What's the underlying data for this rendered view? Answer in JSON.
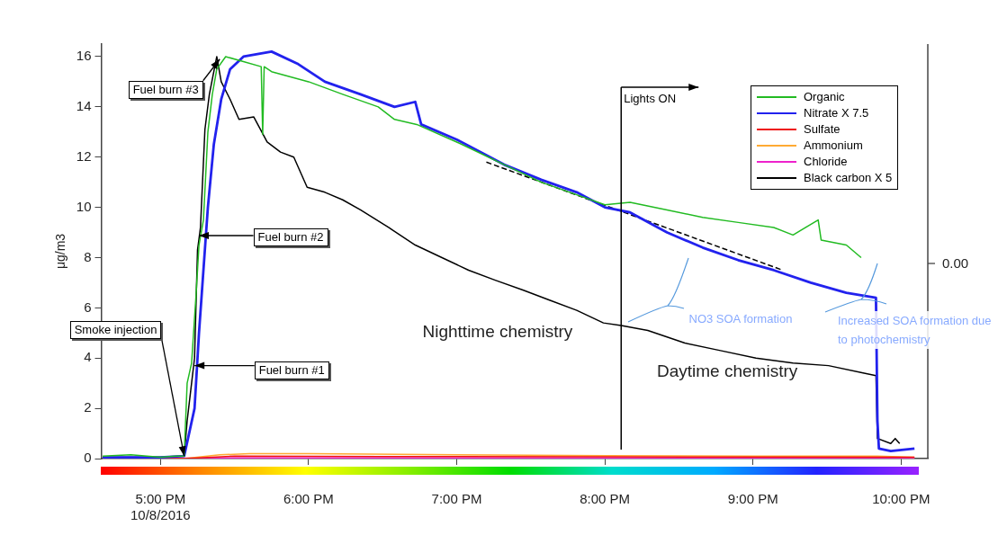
{
  "chart_data": {
    "type": "line",
    "ylabel": "μg/m3",
    "xlim": [
      16.6,
      22.18
    ],
    "ylim": [
      0,
      16.5
    ],
    "xticks": [
      {
        "value": 17,
        "label": "5:00 PM\n10/8/2016"
      },
      {
        "value": 18,
        "label": "6:00 PM"
      },
      {
        "value": 19,
        "label": "7:00 PM"
      },
      {
        "value": 20,
        "label": "8:00 PM"
      },
      {
        "value": 21,
        "label": "9:00 PM"
      },
      {
        "value": 22,
        "label": "10:00 PM"
      }
    ],
    "yticks": [
      0,
      2,
      4,
      6,
      8,
      10,
      12,
      14,
      16
    ],
    "grid": false,
    "legend": "top right",
    "marker": "none",
    "series": [
      {
        "name": "Organic",
        "color": "#22bb22",
        "x": [
          16.61,
          16.8,
          17.0,
          17.1,
          17.16,
          17.18,
          17.21,
          17.24,
          17.26,
          17.29,
          17.32,
          17.35,
          17.38,
          17.44,
          17.56,
          17.68,
          17.69,
          17.7,
          17.75,
          18.0,
          18.23,
          18.47,
          18.58,
          18.73,
          19.0,
          19.32,
          19.57,
          19.81,
          20.0,
          20.17,
          20.42,
          20.66,
          20.9,
          21.14,
          21.27,
          21.44,
          21.46,
          21.63,
          21.73
        ],
        "values": [
          0.1,
          0.15,
          0.05,
          0.1,
          0.1,
          3.0,
          3.8,
          6.5,
          8.5,
          9.5,
          13,
          14.5,
          15.5,
          16,
          15.8,
          15.6,
          12.9,
          15.6,
          15.4,
          15.0,
          14.5,
          14.0,
          13.5,
          13.3,
          12.6,
          11.7,
          11.0,
          10.5,
          10.1,
          10.2,
          9.9,
          9.6,
          9.4,
          9.2,
          8.9,
          9.5,
          8.7,
          8.5,
          8.0
        ]
      },
      {
        "name": "Nitrate X 7.5",
        "color": "#2222ee",
        "x": [
          16.61,
          17.0,
          17.16,
          17.23,
          17.26,
          17.29,
          17.32,
          17.36,
          17.41,
          17.47,
          17.56,
          17.75,
          17.93,
          18.11,
          18.35,
          18.58,
          18.72,
          18.76,
          19.0,
          19.32,
          19.57,
          19.81,
          20.0,
          20.17,
          20.42,
          20.66,
          20.9,
          21.14,
          21.39,
          21.63,
          21.83,
          21.84,
          21.85,
          21.93,
          22.09
        ],
        "values": [
          0.05,
          0.05,
          0.1,
          2.0,
          5,
          7.5,
          10,
          12.5,
          14.3,
          15.5,
          16,
          16.2,
          15.7,
          15.0,
          14.5,
          14.0,
          14.2,
          13.3,
          12.7,
          11.7,
          11.1,
          10.6,
          10.0,
          9.8,
          9.0,
          8.4,
          7.9,
          7.5,
          7.0,
          6.6,
          6.4,
          1.5,
          0.4,
          0.3,
          0.4
        ]
      },
      {
        "name": "Sulfate",
        "color": "#ee1111",
        "x": [
          16.61,
          17.16,
          17.5,
          18.5,
          20.0,
          22.09
        ],
        "values": [
          0,
          0,
          0.1,
          0.08,
          0.07,
          0.05
        ]
      },
      {
        "name": "Ammonium",
        "color": "#ffaa33",
        "x": [
          16.61,
          17.16,
          17.4,
          17.6,
          18.0,
          19.0,
          20.0,
          21.0,
          21.84,
          22.09
        ],
        "values": [
          0,
          0,
          0.15,
          0.2,
          0.2,
          0.15,
          0.12,
          0.1,
          0.1,
          0.05
        ]
      },
      {
        "name": "Chloride",
        "color": "#ee22cc",
        "x": [
          16.61,
          17.5,
          22.09
        ],
        "values": [
          0,
          0.03,
          0.02
        ]
      },
      {
        "name": "Black carbon X 5",
        "color": "#000000",
        "x": [
          16.61,
          17.0,
          17.16,
          17.18,
          17.21,
          17.23,
          17.25,
          17.27,
          17.3,
          17.33,
          17.38,
          17.41,
          17.47,
          17.53,
          17.63,
          17.72,
          17.81,
          17.9,
          17.99,
          18.11,
          18.23,
          18.35,
          18.54,
          18.72,
          18.9,
          19.08,
          19.26,
          19.45,
          19.63,
          19.81,
          19.99,
          20.11,
          20.29,
          20.54,
          20.78,
          21.02,
          21.27,
          21.51,
          21.75,
          21.83,
          21.84,
          21.93,
          21.96,
          21.99
        ],
        "values": [
          0.05,
          0.05,
          0.1,
          1.5,
          3.0,
          4.0,
          8.3,
          9.2,
          13.1,
          14.5,
          16.0,
          15.0,
          14.3,
          13.5,
          13.6,
          12.6,
          12.2,
          12.0,
          10.8,
          10.6,
          10.3,
          9.9,
          9.2,
          8.5,
          8.0,
          7.5,
          7.1,
          6.7,
          6.3,
          5.9,
          5.4,
          5.3,
          5.1,
          4.6,
          4.3,
          4.0,
          3.8,
          3.7,
          3.4,
          3.3,
          0.8,
          0.6,
          0.8,
          0.6
        ]
      },
      {
        "type": "line",
        "color": "#000000",
        "line_style": "dashed",
        "x": [
          19.2,
          21.2
        ],
        "values": [
          11.8,
          7.5
        ]
      }
    ],
    "ref_lines": [
      {
        "axis": "x",
        "value": 20.11,
        "label": "Lights ON"
      }
    ],
    "annotations": [
      {
        "text": "Fuel burn #3",
        "x": 17.4,
        "y": 15.9
      },
      "Fuel burn #2",
      {
        "text": "Fuel burn #1",
        "x": 17.23,
        "y": 3.7
      },
      {
        "text": "Smoke injection",
        "x": 17.16,
        "y": 0.1
      },
      "Nighttime chemistry",
      "Daytime chemistry",
      "NO3 SOA formation",
      "Increased SOA formation due to photochemistry",
      "0.00"
    ]
  }
}
